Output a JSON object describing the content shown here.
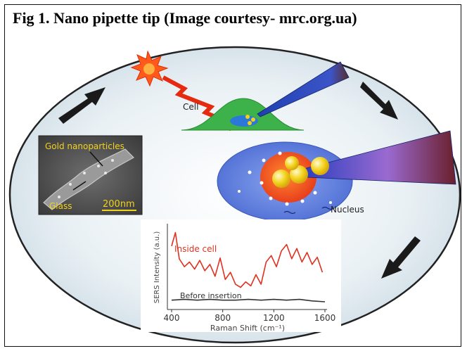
{
  "caption": "Fig 1. Nano pipette tip (Image courtesy- mrc.org.ua)",
  "labels": {
    "cell": "Cell",
    "nucleus": "Nucleus"
  },
  "sem_image": {
    "particles_label": "Gold nanoparticles",
    "glass_label": "Glass",
    "scale_bar": "200nm"
  },
  "chart_data": {
    "type": "line",
    "xlabel": "Raman Shift (cm⁻¹)",
    "ylabel": "SERS Intensity (a.u.)",
    "xlim": [
      400,
      1600
    ],
    "x_ticks": [
      "400",
      "800",
      "1200",
      "1600"
    ],
    "series": [
      {
        "name": "Inside cell",
        "color": "#e03020",
        "x": [
          400,
          430,
          460,
          500,
          540,
          580,
          620,
          660,
          700,
          740,
          780,
          820,
          860,
          900,
          940,
          980,
          1020,
          1060,
          1100,
          1140,
          1180,
          1220,
          1260,
          1300,
          1340,
          1380,
          1420,
          1460,
          1500,
          1540,
          1580
        ],
        "values": [
          0.78,
          0.95,
          0.62,
          0.52,
          0.58,
          0.49,
          0.6,
          0.47,
          0.55,
          0.4,
          0.63,
          0.36,
          0.45,
          0.3,
          0.26,
          0.33,
          0.28,
          0.42,
          0.3,
          0.58,
          0.66,
          0.52,
          0.72,
          0.8,
          0.62,
          0.75,
          0.58,
          0.7,
          0.55,
          0.64,
          0.45
        ]
      },
      {
        "name": "Before insertion",
        "color": "#333333",
        "x": [
          400,
          500,
          600,
          700,
          800,
          900,
          1000,
          1100,
          1200,
          1300,
          1400,
          1500,
          1600
        ],
        "values": [
          0.1,
          0.11,
          0.1,
          0.11,
          0.1,
          0.1,
          0.11,
          0.1,
          0.11,
          0.1,
          0.11,
          0.09,
          0.08
        ]
      }
    ]
  },
  "colors": {
    "oval": "#dce8ef",
    "plot_bg": "#ffffff",
    "blue_pipette": "#1f3fb0",
    "cell_green": "#3db24a",
    "nucleus_blue": "#6a86e0",
    "nucleus_core": "#f04a22",
    "gold_particle": "#f2d21a"
  }
}
